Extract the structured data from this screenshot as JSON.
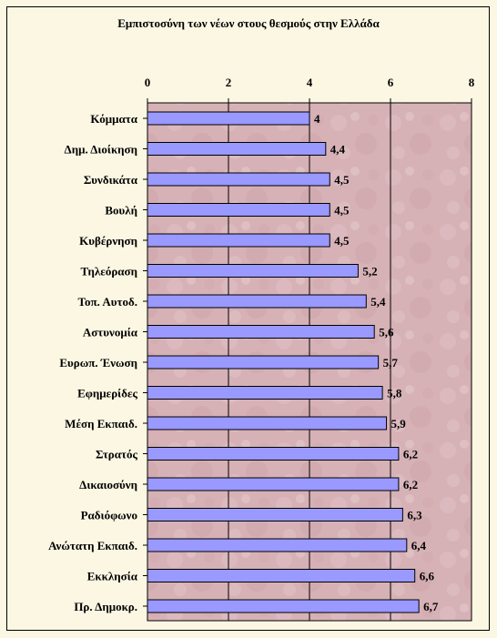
{
  "chart_data": {
    "type": "bar",
    "orientation": "horizontal",
    "title": "Εμπιστοσύνη των νέων στους θεσμούς στην Ελλάδα",
    "categories": [
      "Κόμματα",
      "Δημ. Διοίκηση",
      "Συνδικάτα",
      "Βουλή",
      "Κυβέρνηση",
      "Τηλεόραση",
      "Τοπ. Αυτοδ.",
      "Αστυνομία",
      "Ευρωπ. Ένωση",
      "Εφημερίδες",
      "Μέση Εκπαιδ.",
      "Στρατός",
      "Δικαιοσύνη",
      "Ραδιόφωνο",
      "Ανώτατη Εκπαιδ.",
      "Εκκλησία",
      "Πρ. Δημοκρ."
    ],
    "values": [
      4,
      4.4,
      4.5,
      4.5,
      4.5,
      5.2,
      5.4,
      5.6,
      5.7,
      5.8,
      5.9,
      6.2,
      6.2,
      6.3,
      6.4,
      6.6,
      6.7
    ],
    "data_labels": [
      "4",
      "4,4",
      "4,5",
      "4,5",
      "4,5",
      "5,2",
      "5,4",
      "5,6",
      "5,7",
      "5,8",
      "5,9",
      "6,2",
      "6,2",
      "6,3",
      "6,4",
      "6,6",
      "6,7"
    ],
    "x_ticks": [
      "0",
      "2",
      "4",
      "6",
      "8"
    ],
    "xlim": [
      0,
      8
    ],
    "grid": true,
    "axis_position": "top",
    "colors": {
      "bar": "#9999ff",
      "plot_area": "#d7b3b8",
      "background": "#fbf7e3"
    }
  }
}
